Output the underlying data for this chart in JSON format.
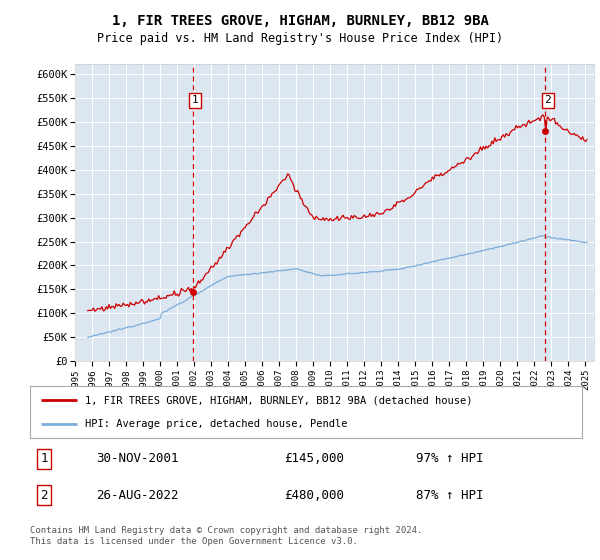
{
  "title": "1, FIR TREES GROVE, HIGHAM, BURNLEY, BB12 9BA",
  "subtitle": "Price paid vs. HM Land Registry's House Price Index (HPI)",
  "background_color": "#dce6f1",
  "plot_bg_color": "#dce6f1",
  "ylabel_ticks": [
    "£0",
    "£50K",
    "£100K",
    "£150K",
    "£200K",
    "£250K",
    "£300K",
    "£350K",
    "£400K",
    "£450K",
    "£500K",
    "£550K",
    "£600K"
  ],
  "ytick_vals": [
    0,
    50000,
    100000,
    150000,
    200000,
    250000,
    300000,
    350000,
    400000,
    450000,
    500000,
    550000,
    600000
  ],
  "ylim": [
    0,
    620000
  ],
  "xlim_start": 1995.5,
  "xlim_end": 2025.5,
  "xtick_labels": [
    "1995",
    "1996",
    "1997",
    "1998",
    "1999",
    "2000",
    "2001",
    "2002",
    "2003",
    "2004",
    "2005",
    "2006",
    "2007",
    "2008",
    "2009",
    "2010",
    "2011",
    "2012",
    "2013",
    "2014",
    "2015",
    "2016",
    "2017",
    "2018",
    "2019",
    "2020",
    "2021",
    "2022",
    "2023",
    "2024",
    "2025"
  ],
  "transaction1_x": 2001.917,
  "transaction1_y": 145000,
  "transaction2_x": 2022.646,
  "transaction2_y": 480000,
  "legend_line1": "1, FIR TREES GROVE, HIGHAM, BURNLEY, BB12 9BA (detached house)",
  "legend_line2": "HPI: Average price, detached house, Pendle",
  "annot1_date": "30-NOV-2001",
  "annot1_price": "£145,000",
  "annot1_hpi": "97% ↑ HPI",
  "annot2_date": "26-AUG-2022",
  "annot2_price": "£480,000",
  "annot2_hpi": "87% ↑ HPI",
  "footer": "Contains HM Land Registry data © Crown copyright and database right 2024.\nThis data is licensed under the Open Government Licence v3.0.",
  "red_color": "#cc0000",
  "blue_color": "#7aacda",
  "grid_color": "#ffffff",
  "spine_color": "#cccccc"
}
